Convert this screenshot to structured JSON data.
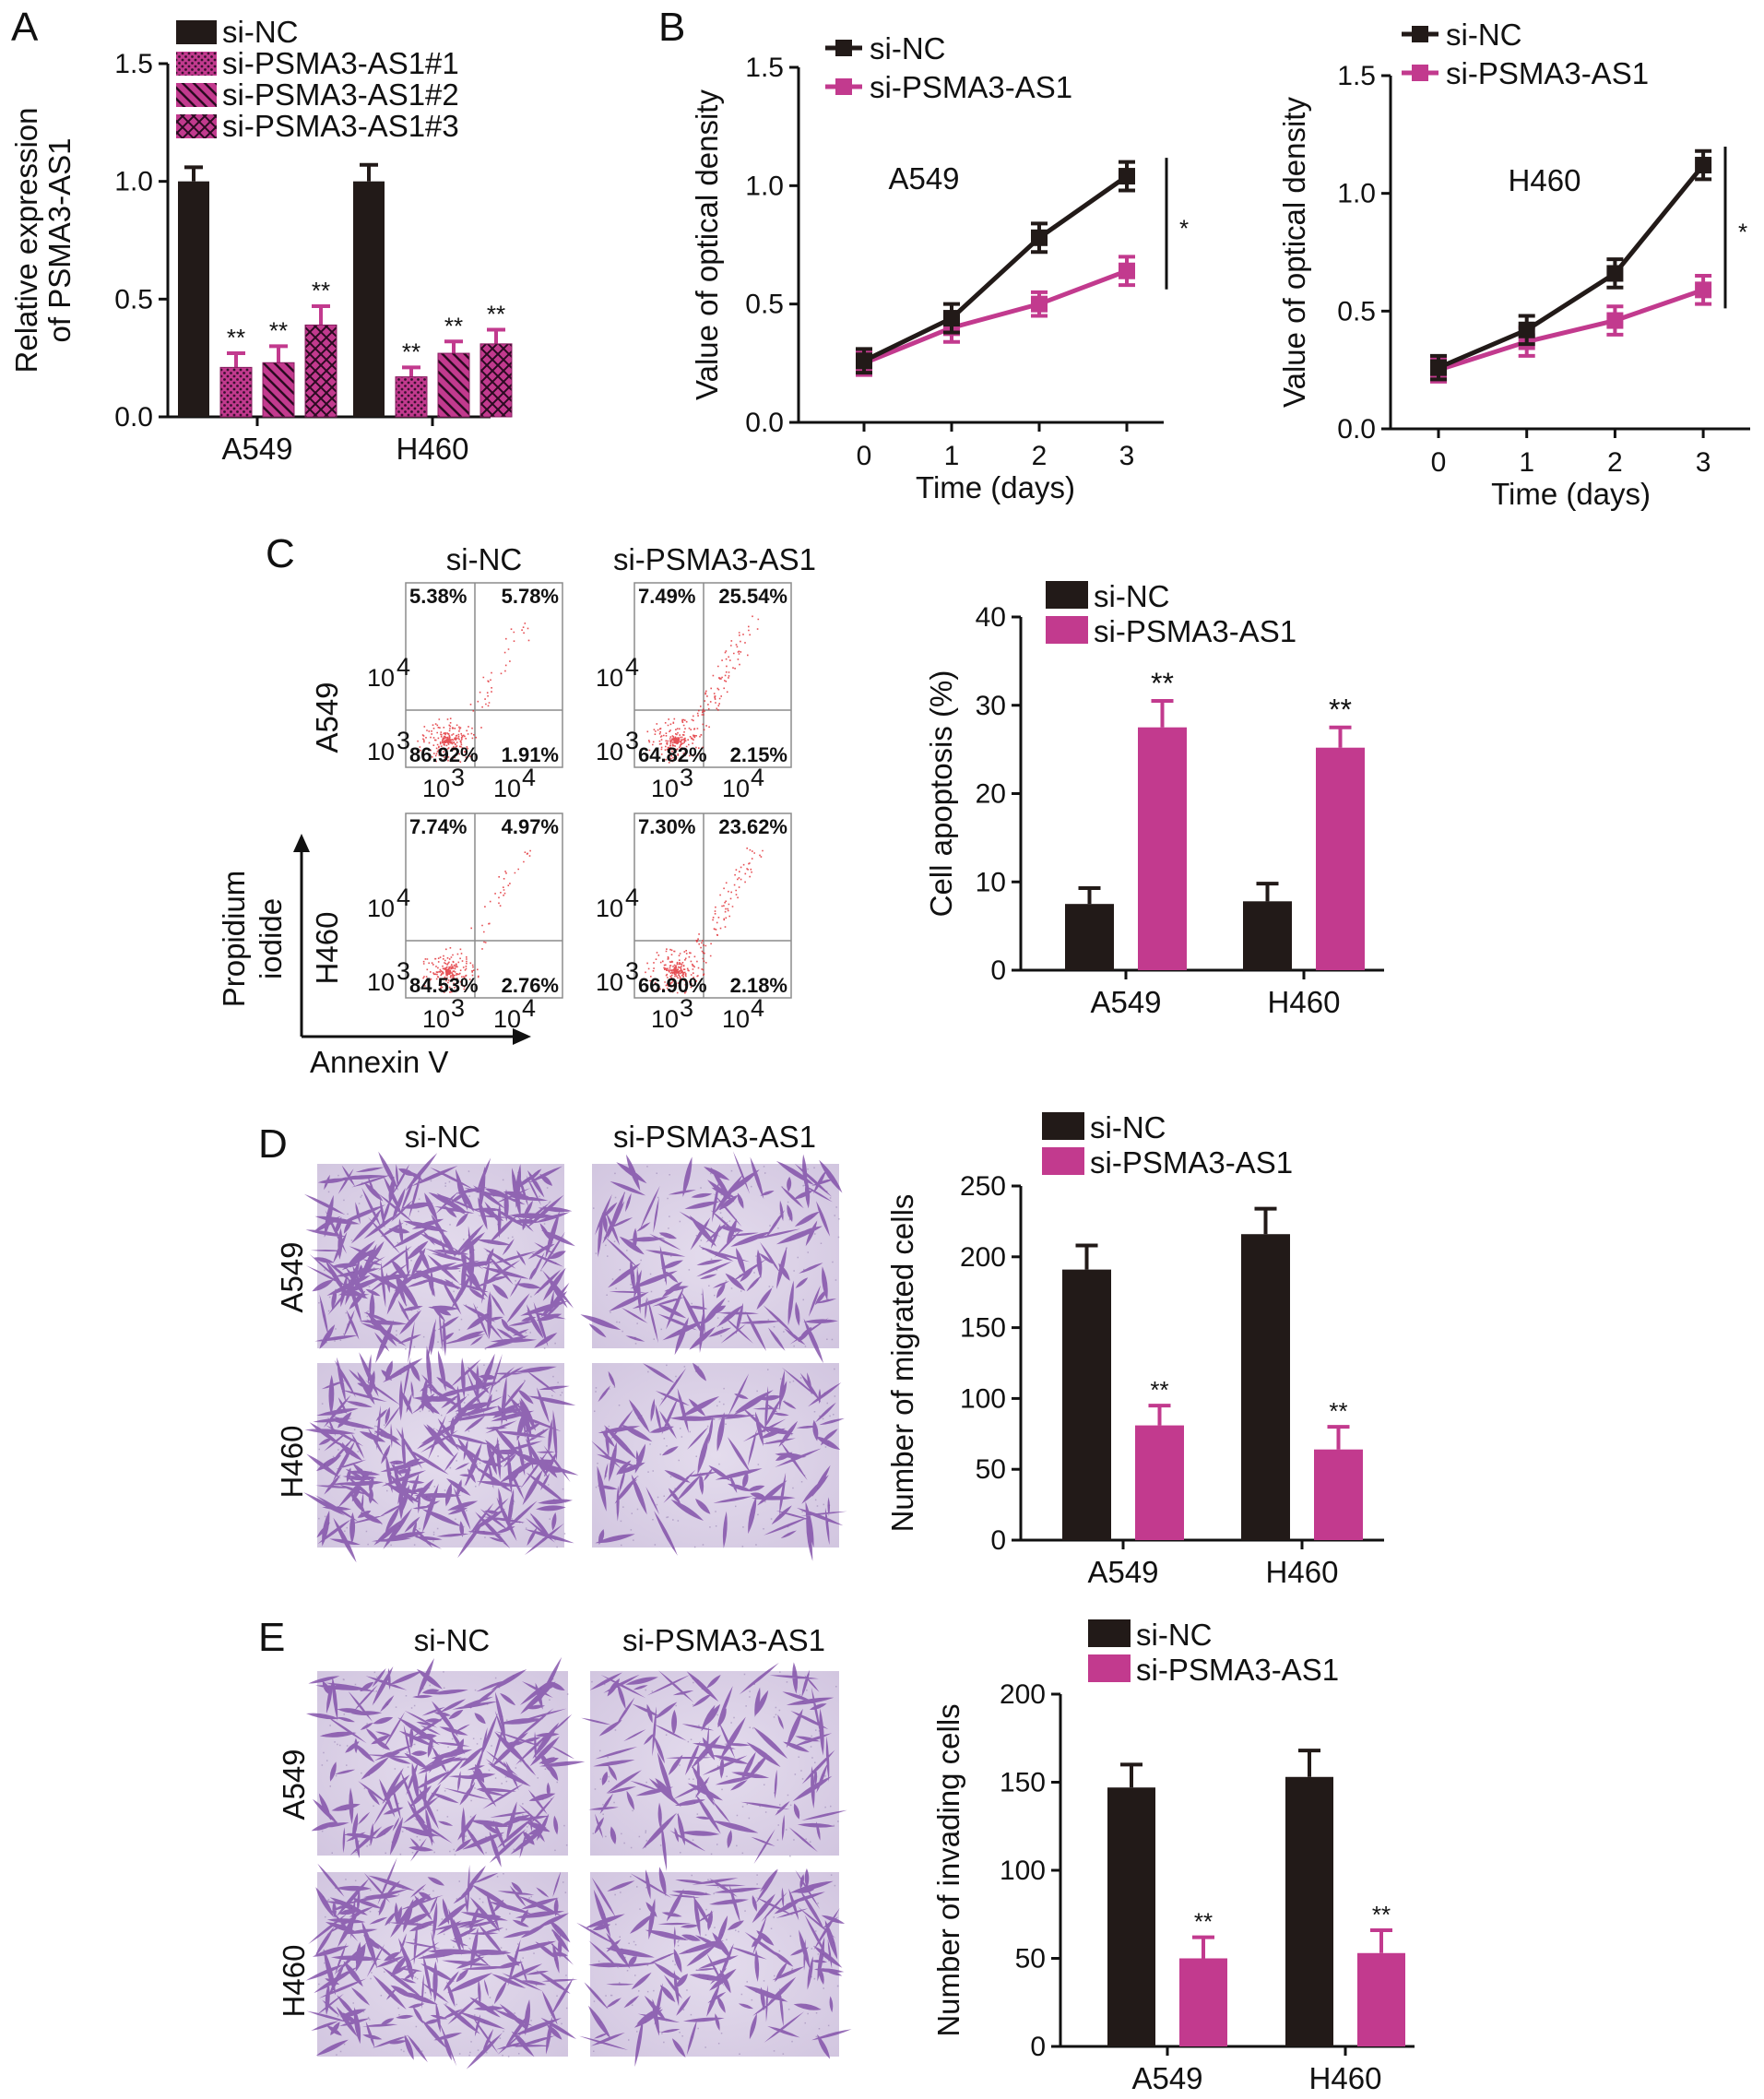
{
  "colors": {
    "control": "#221a18",
    "treatment": "#c23a8e",
    "cell_stain": "#7b47a4"
  },
  "panel_labels": {
    "A": "A",
    "B": "B",
    "C": "C",
    "D": "D",
    "E": "E"
  },
  "legend": {
    "control": "si-NC",
    "treatment": "si-PSMA3-AS1"
  },
  "chart_data": [
    {
      "id": "A",
      "type": "bar",
      "ylabel": "Relative expression of PSMA3-AS1",
      "ylabel_lines": [
        "Relative expression",
        "of PSMA3-AS1"
      ],
      "ylim": [
        0,
        1.5
      ],
      "yticks": [
        "0.0",
        "0.5",
        "1.0",
        "1.5"
      ],
      "categories": [
        "A549",
        "H460"
      ],
      "legend_position": "top-left",
      "series": [
        {
          "name": "si-NC",
          "values": [
            1.0,
            1.0
          ],
          "errors": [
            0.06,
            0.07
          ],
          "sig": [
            "",
            ""
          ],
          "pattern": "solid"
        },
        {
          "name": "si-PSMA3-AS1#1",
          "values": [
            0.21,
            0.17
          ],
          "errors": [
            0.06,
            0.04
          ],
          "sig": [
            "**",
            "**"
          ],
          "pattern": "dots"
        },
        {
          "name": "si-PSMA3-AS1#2",
          "values": [
            0.23,
            0.27
          ],
          "errors": [
            0.07,
            0.05
          ],
          "sig": [
            "**",
            "**"
          ],
          "pattern": "diagonal"
        },
        {
          "name": "si-PSMA3-AS1#3",
          "values": [
            0.39,
            0.31
          ],
          "errors": [
            0.08,
            0.06
          ],
          "sig": [
            "**",
            "**"
          ],
          "pattern": "crosshatch"
        }
      ]
    },
    {
      "id": "B1",
      "type": "line",
      "annotation": "A549",
      "xlabel": "Time (days)",
      "ylabel": "Value of optical density",
      "x": [
        0,
        1,
        2,
        3
      ],
      "xticks": [
        "0",
        "1",
        "2",
        "3"
      ],
      "ylim": [
        0,
        1.5
      ],
      "yticks": [
        "0.0",
        "0.5",
        "1.0",
        "1.5"
      ],
      "legend_position": "top-left",
      "significance": "*",
      "series": [
        {
          "name": "si-NC",
          "values": [
            0.26,
            0.44,
            0.78,
            1.04
          ],
          "errors": [
            0.05,
            0.06,
            0.06,
            0.06
          ]
        },
        {
          "name": "si-PSMA3-AS1",
          "values": [
            0.25,
            0.4,
            0.5,
            0.64
          ],
          "errors": [
            0.05,
            0.06,
            0.05,
            0.06
          ]
        }
      ]
    },
    {
      "id": "B2",
      "type": "line",
      "annotation": "H460",
      "xlabel": "Time (days)",
      "ylabel": "Value of optical density",
      "x": [
        0,
        1,
        2,
        3
      ],
      "xticks": [
        "0",
        "1",
        "2",
        "3"
      ],
      "ylim": [
        0,
        1.5
      ],
      "yticks": [
        "0.0",
        "0.5",
        "1.0",
        "1.5"
      ],
      "legend_position": "top-left",
      "significance": "*",
      "series": [
        {
          "name": "si-NC",
          "values": [
            0.26,
            0.42,
            0.66,
            1.12
          ],
          "errors": [
            0.05,
            0.06,
            0.06,
            0.06
          ]
        },
        {
          "name": "si-PSMA3-AS1",
          "values": [
            0.25,
            0.37,
            0.46,
            0.59
          ],
          "errors": [
            0.05,
            0.06,
            0.06,
            0.06
          ]
        }
      ]
    },
    {
      "id": "C",
      "type": "bar",
      "ylabel": "Cell apoptosis (%)",
      "ylim": [
        0,
        40
      ],
      "yticks": [
        "0",
        "10",
        "20",
        "30",
        "40"
      ],
      "categories": [
        "A549",
        "H460"
      ],
      "legend_position": "top-left",
      "series": [
        {
          "name": "si-NC",
          "values": [
            7.5,
            7.8
          ],
          "errors": [
            1.8,
            2.0
          ],
          "sig": [
            "",
            ""
          ]
        },
        {
          "name": "si-PSMA3-AS1",
          "values": [
            27.5,
            25.2
          ],
          "errors": [
            3.0,
            2.3
          ],
          "sig": [
            "**",
            "**"
          ]
        }
      ]
    },
    {
      "id": "D",
      "type": "bar",
      "ylabel": "Number of migrated cells",
      "ylim": [
        0,
        250
      ],
      "yticks": [
        "0",
        "50",
        "100",
        "150",
        "200",
        "250"
      ],
      "categories": [
        "A549",
        "H460"
      ],
      "legend_position": "top-left",
      "series": [
        {
          "name": "si-NC",
          "values": [
            191,
            216
          ],
          "errors": [
            17,
            18
          ],
          "sig": [
            "",
            ""
          ]
        },
        {
          "name": "si-PSMA3-AS1",
          "values": [
            81,
            64
          ],
          "errors": [
            14,
            16
          ],
          "sig": [
            "**",
            "**"
          ]
        }
      ]
    },
    {
      "id": "E",
      "type": "bar",
      "ylabel": "Number of invading cells",
      "ylim": [
        0,
        200
      ],
      "yticks": [
        "0",
        "50",
        "100",
        "150",
        "200"
      ],
      "categories": [
        "A549",
        "H460"
      ],
      "legend_position": "top-left",
      "series": [
        {
          "name": "si-NC",
          "values": [
            147,
            153
          ],
          "errors": [
            13,
            15
          ],
          "sig": [
            "",
            ""
          ]
        },
        {
          "name": "si-PSMA3-AS1",
          "values": [
            50,
            53
          ],
          "errors": [
            12,
            13
          ],
          "sig": [
            "**",
            "**"
          ]
        }
      ]
    }
  ],
  "flow": {
    "col_labels": [
      "si-NC",
      "si-PSMA3-AS1"
    ],
    "row_labels": [
      "A549",
      "H460"
    ],
    "x_axis_label": "Annexin V",
    "y_axis_label": [
      "Propidium",
      "iodide"
    ],
    "tick_low": "10",
    "tick_high": "10",
    "tick_exp_low": "3",
    "tick_exp_high": "4",
    "plots": [
      {
        "row": "A549",
        "col": "si-NC",
        "q": [
          "5.38%",
          "5.78%",
          "86.92%",
          "1.91%"
        ]
      },
      {
        "row": "A549",
        "col": "si-PSMA3-AS1",
        "q": [
          "7.49%",
          "25.54%",
          "64.82%",
          "2.15%"
        ]
      },
      {
        "row": "H460",
        "col": "si-NC",
        "q": [
          "7.74%",
          "4.97%",
          "84.53%",
          "2.76%"
        ]
      },
      {
        "row": "H460",
        "col": "si-PSMA3-AS1",
        "q": [
          "7.30%",
          "23.62%",
          "66.90%",
          "2.18%"
        ]
      }
    ]
  },
  "micro_D": {
    "col_labels": [
      "si-NC",
      "si-PSMA3-AS1"
    ],
    "row_labels": [
      "A549",
      "H460"
    ],
    "density": [
      [
        1.0,
        0.45
      ],
      [
        1.0,
        0.35
      ]
    ]
  },
  "micro_E": {
    "col_labels": [
      "si-NC",
      "si-PSMA3-AS1"
    ],
    "row_labels": [
      "A549",
      "H460"
    ],
    "density": [
      [
        0.75,
        0.35
      ],
      [
        0.8,
        0.45
      ]
    ]
  }
}
